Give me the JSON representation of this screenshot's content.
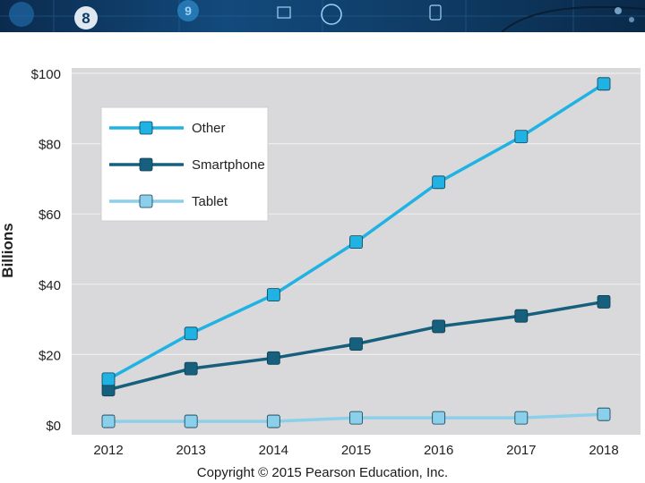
{
  "slide": {
    "copyright": "Copyright © 2015 Pearson Education, Inc."
  },
  "banner": {
    "icon_labels": [
      "8",
      "9"
    ]
  },
  "chart_data": {
    "type": "line",
    "title": "",
    "xlabel": "",
    "ylabel": "Billions",
    "x": [
      "2012",
      "2013",
      "2014",
      "2015",
      "2016",
      "2017",
      "2018"
    ],
    "ylim": [
      0,
      100
    ],
    "yticks": [
      0,
      20,
      40,
      60,
      80,
      100
    ],
    "ytick_labels": [
      "$0",
      "$20",
      "$40",
      "$60",
      "$80",
      "$100"
    ],
    "legend_position": "top-left",
    "series": [
      {
        "name": "Other",
        "color": "#1fb2e3",
        "values": [
          13,
          26,
          37,
          52,
          69,
          82,
          97
        ]
      },
      {
        "name": "Smartphone",
        "color": "#16607e",
        "values": [
          10,
          16,
          19,
          23,
          28,
          31,
          35
        ]
      },
      {
        "name": "Tablet",
        "color": "#8ccfeb",
        "values": [
          1,
          1,
          1,
          2,
          2,
          2,
          3
        ]
      }
    ]
  }
}
